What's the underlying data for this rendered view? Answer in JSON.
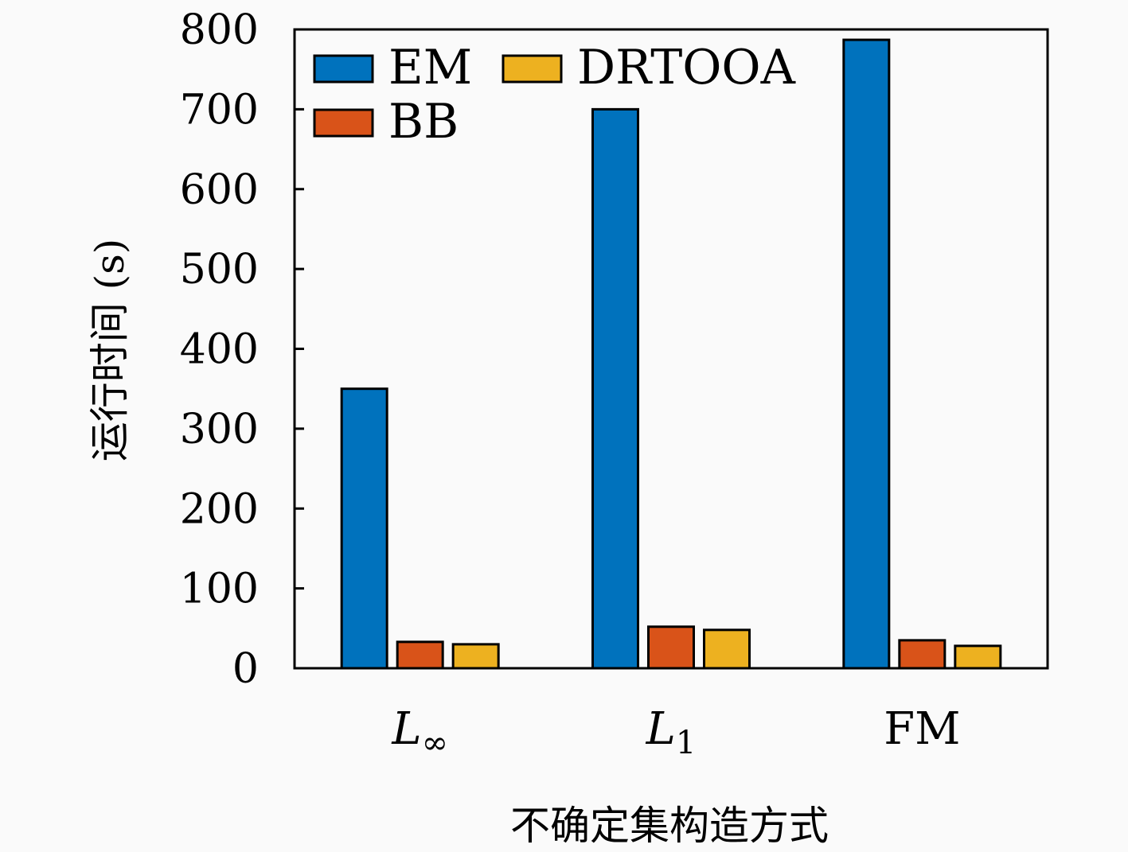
{
  "chart_data": {
    "type": "bar",
    "title": "",
    "xlabel": "不确定集构造方式",
    "ylabel": "运行时间 (s)",
    "categories": [
      "L∞",
      "L1",
      "FM"
    ],
    "series": [
      {
        "name": "EM",
        "values": [
          350,
          700,
          787
        ],
        "color": "#0072bd"
      },
      {
        "name": "BB",
        "values": [
          33,
          52,
          35
        ],
        "color": "#d95319"
      },
      {
        "name": "DRTOOA",
        "values": [
          30,
          48,
          28
        ],
        "color": "#edb120"
      }
    ],
    "ylim": [
      0,
      800
    ],
    "yticks": [
      0,
      100,
      200,
      300,
      400,
      500,
      600,
      700,
      800
    ],
    "grid": false,
    "legend_position": "top-left"
  }
}
